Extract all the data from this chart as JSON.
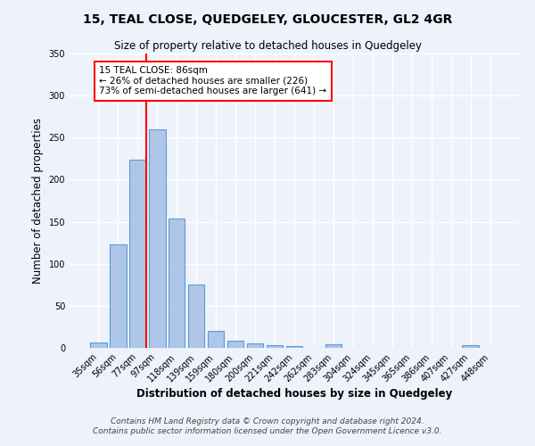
{
  "title": "15, TEAL CLOSE, QUEDGELEY, GLOUCESTER, GL2 4GR",
  "subtitle": "Size of property relative to detached houses in Quedgeley",
  "xlabel": "Distribution of detached houses by size in Quedgeley",
  "ylabel": "Number of detached properties",
  "bar_labels": [
    "35sqm",
    "56sqm",
    "77sqm",
    "97sqm",
    "118sqm",
    "139sqm",
    "159sqm",
    "180sqm",
    "200sqm",
    "221sqm",
    "242sqm",
    "262sqm",
    "283sqm",
    "304sqm",
    "324sqm",
    "345sqm",
    "365sqm",
    "386sqm",
    "407sqm",
    "427sqm",
    "448sqm"
  ],
  "bar_values": [
    6,
    123,
    224,
    260,
    154,
    75,
    20,
    9,
    5,
    3,
    2,
    0,
    4,
    0,
    0,
    0,
    0,
    0,
    0,
    3,
    0
  ],
  "bar_color": "#aec6e8",
  "bar_edge_color": "#5b9bd5",
  "background_color": "#eef2fb",
  "grid_color": "#ffffff",
  "vline_color": "red",
  "annotation_text": "15 TEAL CLOSE: 86sqm\n← 26% of detached houses are smaller (226)\n73% of semi-detached houses are larger (641) →",
  "annotation_box_color": "white",
  "annotation_box_edge": "red",
  "ylim": [
    0,
    350
  ],
  "yticks": [
    0,
    50,
    100,
    150,
    200,
    250,
    300,
    350
  ],
  "footnote1": "Contains HM Land Registry data © Crown copyright and database right 2024.",
  "footnote2": "Contains public sector information licensed under the Open Government Licence v3.0."
}
